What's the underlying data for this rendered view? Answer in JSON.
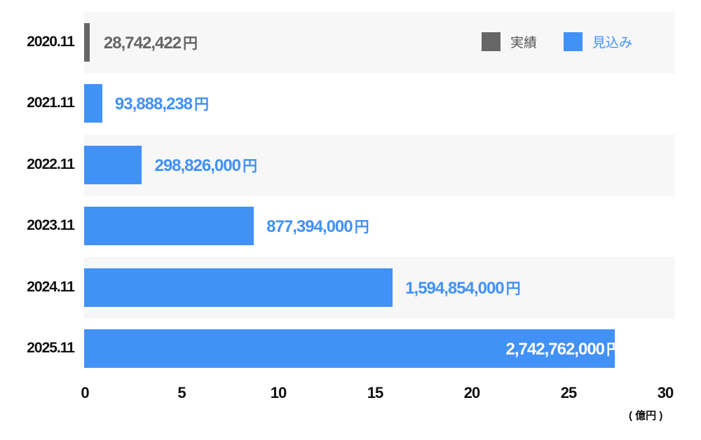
{
  "chart_data": {
    "type": "bar",
    "orientation": "horizontal",
    "categories": [
      "2020.11",
      "2021.11",
      "2022.11",
      "2023.11",
      "2024.11",
      "2025.11"
    ],
    "values": [
      0.28742422,
      0.93888238,
      2.98826,
      8.77394,
      15.94854,
      27.42762
    ],
    "value_labels": [
      "28,742,422",
      "93,888,238",
      "298,826,000",
      "877,394,000",
      "1,594,854,000",
      "2,742,762,000"
    ],
    "value_unit": "円",
    "series_type": [
      "actual",
      "forecast",
      "forecast",
      "forecast",
      "forecast",
      "forecast"
    ],
    "legend": [
      {
        "name": "実績",
        "color": "#666666"
      },
      {
        "name": "見込み",
        "color": "#4191f7"
      }
    ],
    "legend_placement": "top-right",
    "xlim": [
      0,
      30
    ],
    "xticks": [
      "0",
      "5",
      "10",
      "15",
      "20",
      "25",
      "30"
    ],
    "xunit": "( 億円 )",
    "grid": false
  }
}
